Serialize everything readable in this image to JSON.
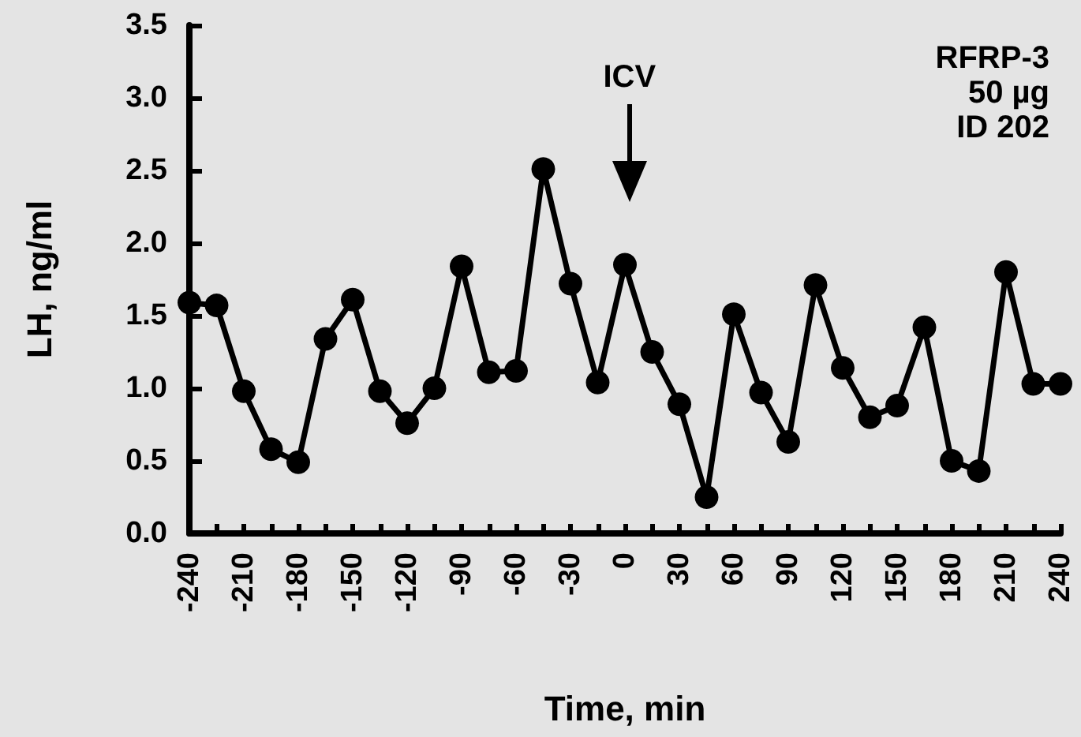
{
  "chart_data": {
    "type": "line",
    "xlabel": "Time, min",
    "ylabel": "LH, ng/ml",
    "x": [
      -240,
      -225,
      -210,
      -195,
      -180,
      -165,
      -150,
      -135,
      -120,
      -105,
      -90,
      -75,
      -60,
      -45,
      -30,
      -15,
      0,
      15,
      30,
      45,
      60,
      75,
      90,
      105,
      120,
      135,
      150,
      165,
      180,
      195,
      210,
      225,
      240
    ],
    "series": [
      {
        "color": "#000000",
        "values": [
          1.59,
          1.57,
          0.98,
          0.58,
          0.49,
          1.34,
          1.61,
          0.98,
          0.76,
          1.0,
          1.84,
          1.11,
          1.12,
          2.51,
          1.72,
          1.04,
          1.85,
          1.25,
          0.89,
          0.25,
          1.51,
          0.97,
          0.63,
          1.71,
          1.14,
          0.8,
          0.88,
          1.42,
          0.5,
          0.43,
          1.8,
          1.03,
          1.03
        ]
      }
    ],
    "xlim": [
      -240,
      240
    ],
    "xticks": [
      -240,
      {
        "value": -225,
        "label": null
      },
      -210,
      {
        "value": -195,
        "label": null
      },
      -180,
      {
        "value": -165,
        "label": null
      },
      -150,
      {
        "value": -135,
        "label": null
      },
      -120,
      {
        "value": -105,
        "label": null
      },
      -90,
      {
        "value": -75,
        "label": null
      },
      -60,
      {
        "value": -45,
        "label": null
      },
      -30,
      {
        "value": -15,
        "label": null
      },
      0,
      {
        "value": 15,
        "label": null
      },
      30,
      {
        "value": 45,
        "label": null
      },
      60,
      {
        "value": 75,
        "label": null
      },
      90,
      {
        "value": 105,
        "label": null
      },
      120,
      {
        "value": 135,
        "label": null
      },
      150,
      {
        "value": 165,
        "label": null
      },
      180,
      {
        "value": 195,
        "label": null
      },
      210,
      {
        "value": 225,
        "label": null
      },
      240
    ],
    "ylim": [
      0,
      3.5
    ],
    "yticks": [
      {
        "value": 0,
        "label": "0.0"
      },
      0.5,
      {
        "value": 1,
        "label": "1.0"
      },
      1.5,
      {
        "value": 2,
        "label": "2.0"
      },
      2.5,
      {
        "value": 3,
        "label": "3.0"
      },
      3.5
    ],
    "annotations": [
      "ICV",
      "RFRP-3\n50 µg\nID 202"
    ],
    "grid": false,
    "marker": "circle",
    "line_style": "solid"
  }
}
